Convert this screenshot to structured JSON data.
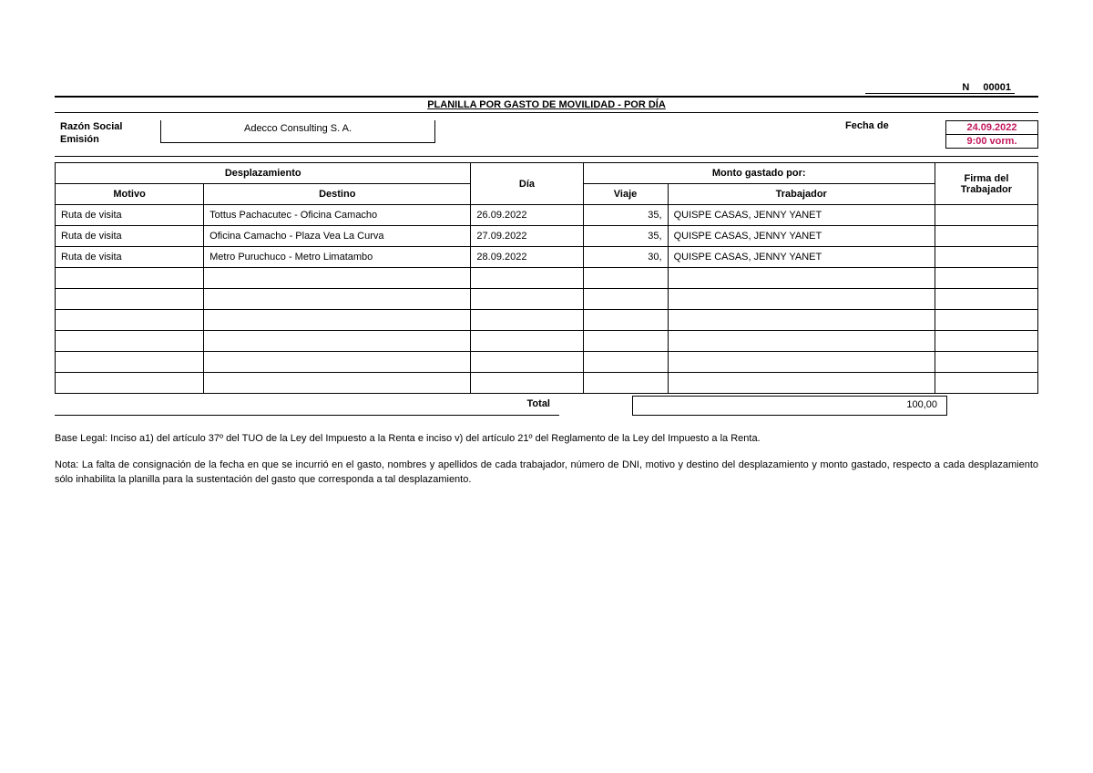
{
  "doc_number_label": "N",
  "doc_number_value": "00001",
  "title": "PLANILLA POR GASTO DE MOVILIDAD -  POR DÍA",
  "header": {
    "razon_social_label": "Razón Social Emisión",
    "company": "Adecco Consulting S. A.",
    "fecha_label": "Fecha de",
    "date": "24.09.2022",
    "time": "9:00 vorm."
  },
  "columns": {
    "desplazamiento": "Desplazamiento",
    "motivo": "Motivo",
    "destino": "Destino",
    "dia": "Día",
    "monto_gastado": "Monto gastado por:",
    "viaje": "Viaje",
    "trabajador": "Trabajador",
    "firma": "Firma del Trabajador"
  },
  "rows": [
    {
      "motivo": "Ruta de visita",
      "destino": "Tottus Pachacutec - Oficina Camacho",
      "dia": "26.09.2022",
      "viaje": "35,",
      "trabajador": "QUISPE CASAS, JENNY YANET",
      "firma": ""
    },
    {
      "motivo": "Ruta de visita",
      "destino": "Oficina Camacho - Plaza Vea La Curva",
      "dia": "27.09.2022",
      "viaje": "35,",
      "trabajador": "QUISPE CASAS, JENNY YANET",
      "firma": ""
    },
    {
      "motivo": "Ruta de visita",
      "destino": "Metro Puruchuco - Metro Limatambo",
      "dia": "28.09.2022",
      "viaje": "30,",
      "trabajador": "QUISPE CASAS, JENNY YANET",
      "firma": ""
    },
    {
      "motivo": "",
      "destino": "",
      "dia": "",
      "viaje": "",
      "trabajador": "",
      "firma": ""
    },
    {
      "motivo": "",
      "destino": "",
      "dia": "",
      "viaje": "",
      "trabajador": "",
      "firma": ""
    },
    {
      "motivo": "",
      "destino": "",
      "dia": "",
      "viaje": "",
      "trabajador": "",
      "firma": ""
    },
    {
      "motivo": "",
      "destino": "",
      "dia": "",
      "viaje": "",
      "trabajador": "",
      "firma": ""
    },
    {
      "motivo": "",
      "destino": "",
      "dia": "",
      "viaje": "",
      "trabajador": "",
      "firma": ""
    },
    {
      "motivo": "",
      "destino": "",
      "dia": "",
      "viaje": "",
      "trabajador": "",
      "firma": ""
    }
  ],
  "total_label": "Total",
  "total_value": "100,00",
  "legal_base": "Base Legal: Inciso a1) del artículo 37º del TUO de la Ley del Impuesto a la Renta e inciso v) del artículo 21º del Reglamento de la Ley del Impuesto a la Renta.",
  "nota": "Nota: La falta de consignación de la fecha en que se incurrió en el gasto, nombres y apellidos de cada trabajador, número de DNI, motivo y destino del desplazamiento y monto gastado, respecto a cada desplazamiento sólo inhabilita la planilla para la sustentación del gasto que corresponda a tal desplazamiento."
}
